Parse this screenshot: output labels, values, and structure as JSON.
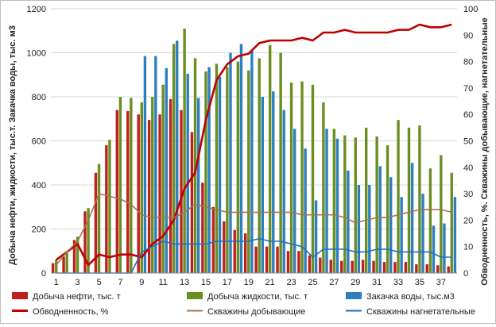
{
  "chart_data": {
    "type": "bar",
    "title": "",
    "x": [
      1,
      2,
      3,
      4,
      5,
      6,
      7,
      8,
      9,
      10,
      11,
      12,
      13,
      14,
      15,
      16,
      17,
      18,
      19,
      20,
      21,
      22,
      23,
      24,
      25,
      26,
      27,
      28,
      29,
      30,
      31,
      32,
      33,
      34,
      35,
      36,
      37,
      38
    ],
    "xtick_labels": [
      "1",
      "3",
      "5",
      "7",
      "9",
      "11",
      "13",
      "15",
      "17",
      "19",
      "21",
      "23",
      "25",
      "27",
      "29",
      "31",
      "33",
      "35",
      "37"
    ],
    "xtick_values": [
      1,
      3,
      5,
      7,
      9,
      11,
      13,
      15,
      17,
      19,
      21,
      23,
      25,
      27,
      29,
      31,
      33,
      35,
      37
    ],
    "ylabel_left": "Добыча нефти, жидкости, тыс.т. Закачка воды, тыс. м3",
    "ylabel_right": "Обводненность, %. Скважины добывающие, нагнетательные",
    "ylim_left": [
      0,
      1200
    ],
    "ylim_right": [
      0,
      100
    ],
    "yticks_left": [
      0,
      200,
      400,
      600,
      800,
      1000,
      1200
    ],
    "yticks_right": [
      0,
      10,
      20,
      30,
      40,
      50,
      60,
      70,
      80,
      90,
      100
    ],
    "grid": "horizontal",
    "legend_position": "bottom",
    "bar_series": [
      {
        "name": "Добыча нефти, тыс. т",
        "color": "#c0201c",
        "values": [
          45,
          75,
          150,
          280,
          455,
          580,
          740,
          735,
          720,
          695,
          720,
          790,
          740,
          640,
          410,
          300,
          235,
          195,
          180,
          120,
          120,
          120,
          100,
          100,
          80,
          70,
          60,
          55,
          55,
          60,
          55,
          50,
          50,
          50,
          40,
          40,
          35,
          30
        ]
      },
      {
        "name": "Добыча жидкости, тыс. т",
        "color": "#6b8e23",
        "values": [
          60,
          90,
          165,
          295,
          495,
          605,
          800,
          795,
          775,
          800,
          855,
          1040,
          1110,
          975,
          915,
          950,
          935,
          960,
          920,
          975,
          1035,
          1000,
          865,
          870,
          855,
          775,
          655,
          625,
          615,
          660,
          620,
          580,
          695,
          660,
          670,
          475,
          535,
          455
        ]
      },
      {
        "name": "Закачка воды, тыс.м3",
        "color": "#2e7fbf",
        "values": [
          0,
          0,
          0,
          0,
          0,
          0,
          0,
          0,
          985,
          985,
          930,
          1055,
          905,
          795,
          935,
          890,
          1000,
          1040,
          1010,
          800,
          825,
          740,
          655,
          565,
          330,
          655,
          610,
          465,
          400,
          400,
          485,
          435,
          345,
          500,
          360,
          215,
          225,
          345
        ]
      }
    ],
    "line_series": [
      {
        "name": "Обводненность, %",
        "color": "#c00000",
        "values": [
          5,
          8,
          11,
          3,
          7,
          6,
          7,
          7,
          6,
          11,
          14,
          20,
          32,
          38,
          58,
          73,
          79,
          82,
          83,
          87,
          88,
          88,
          88,
          89,
          88,
          91,
          91,
          92,
          91,
          91,
          91,
          91,
          92,
          92,
          94,
          93,
          93,
          94
        ]
      },
      {
        "name": "Скважины добывающие",
        "color": "#a07850",
        "values": [
          3,
          8,
          12,
          20,
          30,
          29,
          28,
          26,
          22,
          21,
          21,
          21,
          23,
          26,
          25,
          24,
          23,
          23,
          23,
          23,
          23,
          23,
          23,
          22,
          22,
          22,
          22,
          21,
          19,
          20,
          21,
          21,
          22,
          23,
          24,
          24,
          24,
          23
        ]
      },
      {
        "name": "Скважины нагнетательные",
        "color": "#1f6fbf",
        "values": [
          0,
          0,
          0,
          0,
          0,
          0,
          0,
          0,
          8,
          10,
          12,
          11,
          11,
          11,
          11,
          12,
          12,
          12,
          12,
          13,
          12,
          12,
          11,
          10,
          6,
          9,
          9,
          9,
          8,
          8,
          9,
          9,
          8,
          8,
          8,
          8,
          6,
          6
        ]
      }
    ]
  }
}
